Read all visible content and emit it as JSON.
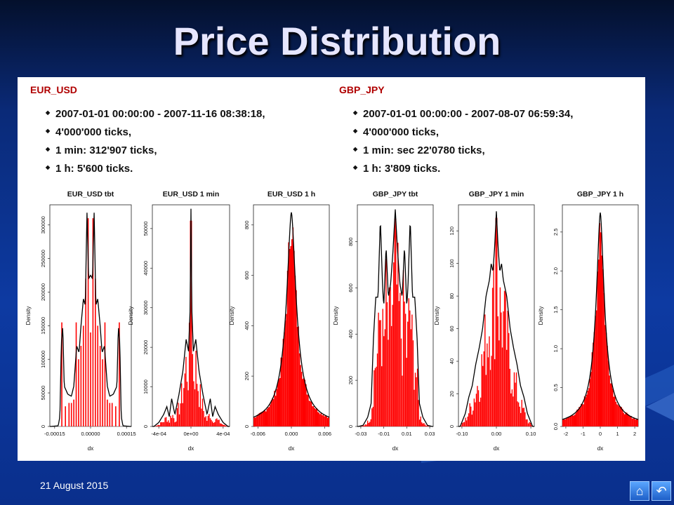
{
  "title": "Price Distribution",
  "footer": {
    "date": "21 August 2015"
  },
  "sections": [
    {
      "pair": "EUR_USD",
      "bullets": [
        "2007-01-01 00:00:00 - 2007-11-16 08:38:18,",
        "4'000'000 ticks,",
        "1 min: 312'907 ticks,",
        "1 h: 5'600 ticks."
      ]
    },
    {
      "pair": "GBP_JPY",
      "bullets": [
        "2007-01-01 00:00:00 - 2007-08-07 06:59:34,",
        "4'000'000 ticks,",
        "1 min: sec 22'0780 ticks,",
        "1 h: 3'809 ticks."
      ]
    }
  ],
  "icons": [
    "home-icon",
    "return-icon"
  ],
  "colors": {
    "histogram": "#ff0000",
    "density": "#000000",
    "pair_label": "#b00000"
  },
  "chart_data": [
    {
      "type": "bar",
      "title": "EUR_USD tbt",
      "xlabel": "dx",
      "ylabel": "Density",
      "xlim": [
        -0.00017,
        0.00017
      ],
      "ylim": [
        0,
        330000
      ],
      "xticks": [
        -0.00015,
        0,
        0.00015
      ],
      "xtick_labels": [
        "-0.00015",
        "0.00000",
        "0.00015"
      ],
      "yticks": [
        0,
        50000,
        100000,
        150000,
        200000,
        250000,
        300000
      ],
      "ytick_labels": [
        "0",
        "50000",
        "100000",
        "150000",
        "200000",
        "250000",
        "300000"
      ],
      "density_curve": [
        [
          -0.000165,
          0
        ],
        [
          -0.000135,
          1000
        ],
        [
          -0.000128,
          15000
        ],
        [
          -0.000122,
          125000
        ],
        [
          -0.000116,
          150000
        ],
        [
          -0.00011,
          60000
        ],
        [
          -9.5e-05,
          48000
        ],
        [
          -8e-05,
          45000
        ],
        [
          -7e-05,
          60000
        ],
        [
          -5.8e-05,
          120000
        ],
        [
          -4.8e-05,
          110000
        ],
        [
          -4e-05,
          150000
        ],
        [
          -3e-05,
          190000
        ],
        [
          -2.2e-05,
          180000
        ],
        [
          -1.5e-05,
          320000
        ],
        [
          -8e-06,
          220000
        ],
        [
          0,
          225000
        ],
        [
          8e-06,
          220000
        ],
        [
          1.5e-05,
          320000
        ],
        [
          2.2e-05,
          180000
        ],
        [
          3e-05,
          190000
        ],
        [
          4e-05,
          150000
        ],
        [
          4.8e-05,
          110000
        ],
        [
          5.8e-05,
          120000
        ],
        [
          7e-05,
          60000
        ],
        [
          8e-05,
          45000
        ],
        [
          9.5e-05,
          48000
        ],
        [
          0.00011,
          60000
        ],
        [
          0.000116,
          150000
        ],
        [
          0.000122,
          125000
        ],
        [
          0.000128,
          15000
        ],
        [
          0.000135,
          1000
        ],
        [
          0.000165,
          0
        ]
      ],
      "histogram": [
        [
          -0.00012,
          155000
        ],
        [
          -0.000105,
          30000
        ],
        [
          -9e-05,
          35000
        ],
        [
          -8e-05,
          35000
        ],
        [
          -7e-05,
          40000
        ],
        [
          -6e-05,
          155000
        ],
        [
          -5e-05,
          100000
        ],
        [
          -4e-05,
          120000
        ],
        [
          -3e-05,
          150000
        ],
        [
          -2e-05,
          220000
        ],
        [
          -1e-05,
          310000
        ],
        [
          0,
          140000
        ],
        [
          1e-05,
          310000
        ],
        [
          2e-05,
          220000
        ],
        [
          3e-05,
          150000
        ],
        [
          4e-05,
          120000
        ],
        [
          5e-05,
          100000
        ],
        [
          6e-05,
          155000
        ],
        [
          7e-05,
          40000
        ],
        [
          8e-05,
          35000
        ],
        [
          9e-05,
          35000
        ],
        [
          0.000105,
          30000
        ],
        [
          0.00012,
          155000
        ]
      ]
    },
    {
      "type": "bar",
      "title": "EUR_USD 1 min",
      "xlabel": "dx",
      "ylabel": "Density",
      "xlim": [
        -0.00048,
        0.00048
      ],
      "ylim": [
        0,
        56000
      ],
      "xticks": [
        -0.0004,
        0,
        0.0004
      ],
      "xtick_labels": [
        "-4e-04",
        "0e+00",
        "4e-04"
      ],
      "yticks": [
        0,
        10000,
        20000,
        30000,
        40000,
        50000
      ],
      "ytick_labels": [
        "0",
        "10000",
        "20000",
        "30000",
        "40000",
        "50000"
      ],
      "density_curve": [
        [
          -0.00046,
          0
        ],
        [
          -0.0004,
          1000
        ],
        [
          -0.00034,
          3000
        ],
        [
          -0.0003,
          5000
        ],
        [
          -0.00027,
          2500
        ],
        [
          -0.00024,
          7000
        ],
        [
          -0.0002,
          3000
        ],
        [
          -0.00015,
          8000
        ],
        [
          -0.0001,
          14000
        ],
        [
          -6e-05,
          22000
        ],
        [
          -3e-05,
          19000
        ],
        [
          -1e-05,
          30000
        ],
        [
          0,
          55000
        ],
        [
          1e-05,
          30000
        ],
        [
          3e-05,
          19000
        ],
        [
          6e-05,
          22000
        ],
        [
          0.0001,
          14000
        ],
        [
          0.00015,
          8000
        ],
        [
          0.0002,
          3000
        ],
        [
          0.00024,
          7000
        ],
        [
          0.00027,
          2500
        ],
        [
          0.0003,
          5000
        ],
        [
          0.00034,
          3000
        ],
        [
          0.0004,
          1000
        ],
        [
          0.00046,
          0
        ]
      ],
      "histogram_spread": 0.00012,
      "histogram_peak": 52000
    },
    {
      "type": "bar",
      "title": "EUR_USD 1 h",
      "xlabel": "dx",
      "ylabel": "Density",
      "xlim": [
        -0.0068,
        0.0068
      ],
      "ylim": [
        0,
        880
      ],
      "xticks": [
        -0.006,
        0,
        0.006
      ],
      "xtick_labels": [
        "-0.006",
        "0.000",
        "0.006"
      ],
      "yticks": [
        0,
        200,
        400,
        600,
        800
      ],
      "ytick_labels": [
        "0",
        "200",
        "400",
        "600",
        "800"
      ],
      "density_peak": 850,
      "density_scale": 0.0011,
      "histogram_peak": 840
    },
    {
      "type": "bar",
      "title": "GBP_JPY tbt",
      "xlabel": "dx",
      "ylabel": "Density",
      "xlim": [
        -0.033,
        0.033
      ],
      "ylim": [
        0,
        960
      ],
      "xticks": [
        -0.03,
        -0.01,
        0.01,
        0.03
      ],
      "xtick_labels": [
        "-0.03",
        "-0.01",
        "0.01",
        "0.03"
      ],
      "yticks": [
        0,
        200,
        400,
        600,
        800
      ],
      "ytick_labels": [
        "0",
        "200",
        "400",
        "600",
        "800"
      ],
      "density_curve": [
        [
          -0.032,
          0
        ],
        [
          -0.028,
          5
        ],
        [
          -0.024,
          40
        ],
        [
          -0.021,
          100
        ],
        [
          -0.019,
          380
        ],
        [
          -0.017,
          560
        ],
        [
          -0.015,
          560
        ],
        [
          -0.013,
          900
        ],
        [
          -0.011,
          600
        ],
        [
          -0.01,
          520
        ],
        [
          -0.008,
          780
        ],
        [
          -0.006,
          560
        ],
        [
          -0.004,
          620
        ],
        [
          -0.002,
          760
        ],
        [
          0,
          940
        ],
        [
          0.002,
          760
        ],
        [
          0.004,
          620
        ],
        [
          0.006,
          560
        ],
        [
          0.008,
          780
        ],
        [
          0.01,
          520
        ],
        [
          0.011,
          600
        ],
        [
          0.013,
          900
        ],
        [
          0.015,
          560
        ],
        [
          0.017,
          560
        ],
        [
          0.019,
          380
        ],
        [
          0.021,
          100
        ],
        [
          0.024,
          40
        ],
        [
          0.028,
          5
        ],
        [
          0.032,
          0
        ]
      ],
      "histogram_spread": 0.011,
      "histogram_peak": 900
    },
    {
      "type": "bar",
      "title": "GBP_JPY 1 min",
      "xlabel": "dx",
      "ylabel": "Density",
      "xlim": [
        -0.11,
        0.11
      ],
      "ylim": [
        0,
        136
      ],
      "xticks": [
        -0.1,
        0,
        0.1
      ],
      "xtick_labels": [
        "-0.10",
        "0.00",
        "0.10"
      ],
      "yticks": [
        0,
        20,
        40,
        60,
        80,
        100,
        120
      ],
      "ytick_labels": [
        "0",
        "20",
        "40",
        "60",
        "80",
        "100",
        "120"
      ],
      "density_curve": [
        [
          -0.105,
          0
        ],
        [
          -0.09,
          8
        ],
        [
          -0.08,
          18
        ],
        [
          -0.07,
          25
        ],
        [
          -0.06,
          38
        ],
        [
          -0.05,
          48
        ],
        [
          -0.04,
          60
        ],
        [
          -0.03,
          80
        ],
        [
          -0.02,
          90
        ],
        [
          -0.015,
          100
        ],
        [
          -0.01,
          95
        ],
        [
          -0.005,
          110
        ],
        [
          0,
          132
        ],
        [
          0.005,
          110
        ],
        [
          0.01,
          95
        ],
        [
          0.015,
          100
        ],
        [
          0.02,
          90
        ],
        [
          0.03,
          80
        ],
        [
          0.04,
          60
        ],
        [
          0.05,
          48
        ],
        [
          0.06,
          38
        ],
        [
          0.07,
          25
        ],
        [
          0.08,
          18
        ],
        [
          0.09,
          8
        ],
        [
          0.105,
          0
        ]
      ],
      "histogram_spread": 0.045,
      "histogram_peak": 128
    },
    {
      "type": "bar",
      "title": "GBP_JPY 1 h",
      "xlabel": "dx",
      "ylabel": "Density",
      "xlim": [
        -2.2,
        2.2
      ],
      "ylim": [
        0,
        2.85
      ],
      "xticks": [
        -2,
        -1,
        0,
        1,
        2
      ],
      "xtick_labels": [
        "-2",
        "-1",
        "0",
        "1",
        "2"
      ],
      "yticks": [
        0,
        0.5,
        1.0,
        1.5,
        2.0,
        2.5
      ],
      "ytick_labels": [
        "0.0",
        "0.5",
        "1.0",
        "1.5",
        "2.0",
        "2.5"
      ],
      "density_peak": 2.75,
      "density_scale": 0.3,
      "histogram_peak": 2.7
    }
  ]
}
